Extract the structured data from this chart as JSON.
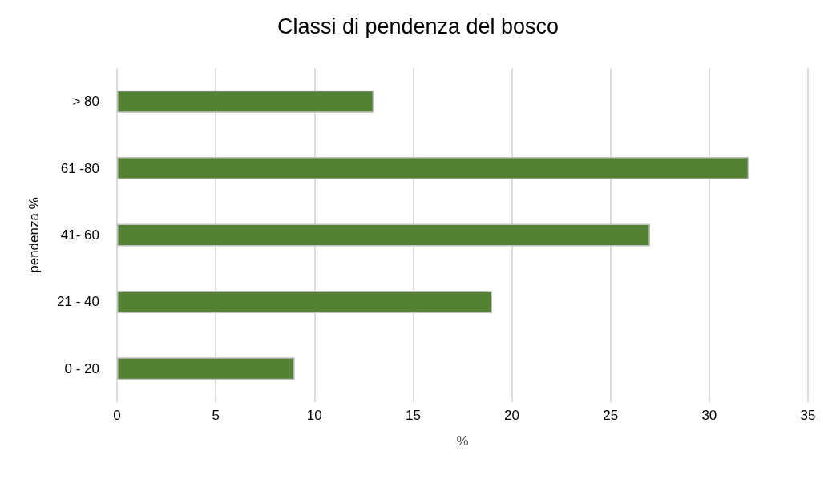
{
  "chart_data": {
    "type": "bar",
    "orientation": "horizontal",
    "title": "Classi di pendenza del bosco",
    "xlabel": "%",
    "ylabel": "pendenza %",
    "categories": [
      "> 80",
      "61 -80",
      "41- 60",
      "21 - 40",
      "0 - 20"
    ],
    "series": [
      {
        "color": "#548235",
        "values": [
          13,
          32,
          27,
          19,
          9
        ]
      }
    ],
    "xlim": [
      0,
      35
    ],
    "xticks": [
      0,
      5,
      10,
      15,
      20,
      25,
      30,
      35
    ],
    "grid": "x"
  }
}
